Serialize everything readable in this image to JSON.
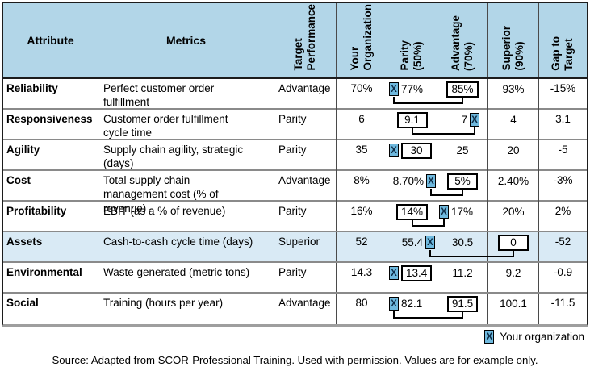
{
  "table": {
    "columns": {
      "attribute": "Attribute",
      "metrics": "Metrics",
      "rotated": [
        "Target\nPerformance",
        "Your\nOrganization",
        "Parity\n(50%)",
        "Advantage\n(70%)",
        "Superior\n(90%)",
        "Gap to\nTarget"
      ]
    },
    "rows": [
      {
        "attribute": "Reliability",
        "metric": "Perfect customer order fulfillment",
        "target": "Advantage",
        "your_org": "70%",
        "parity": {
          "value": "77%",
          "marker": "before",
          "align": "left"
        },
        "advantage": {
          "value": "85%",
          "boxed": true,
          "align": "center"
        },
        "superior": {
          "value": "93%",
          "align": "center"
        },
        "gap": "-15%",
        "connector": true,
        "highlight": false
      },
      {
        "attribute": "Responsiveness",
        "metric": "Customer order fulfillment cycle time",
        "target": "Parity",
        "your_org": "6",
        "parity": {
          "value": "9.1",
          "boxed": true,
          "align": "center"
        },
        "advantage": {
          "value": "7",
          "marker": "after",
          "align": "right",
          "pad": 10
        },
        "superior": {
          "value": "4",
          "align": "center"
        },
        "gap": "3.1",
        "connector": true,
        "highlight": false
      },
      {
        "attribute": "Agility",
        "metric": "Supply chain agility, strategic (days)",
        "target": "Parity",
        "your_org": "35",
        "parity": {
          "value": "30",
          "boxed": true,
          "marker": "before",
          "align": "left"
        },
        "advantage": {
          "value": "25",
          "align": "center"
        },
        "superior": {
          "value": "20",
          "align": "center"
        },
        "gap": "-5",
        "connector": false,
        "highlight": false
      },
      {
        "attribute": "Cost",
        "metric": "Total supply chain management cost (% of revenue)",
        "target": "Advantage",
        "your_org": "8%",
        "parity": {
          "value": "8.70%",
          "marker": "after",
          "align": "right",
          "pad": 1
        },
        "advantage": {
          "value": "5%",
          "boxed": true,
          "align": "center"
        },
        "superior": {
          "value": "2.40%",
          "align": "center"
        },
        "gap": "-3%",
        "connector": true,
        "highlight": false
      },
      {
        "attribute": "Profitability",
        "metric": "EBIT (as a % of revenue)",
        "target": "Parity",
        "your_org": "16%",
        "parity": {
          "value": "14%",
          "boxed": true,
          "align": "center"
        },
        "advantage": {
          "value": "17%",
          "marker": "before",
          "align": "left"
        },
        "superior": {
          "value": "20%",
          "align": "center"
        },
        "gap": "2%",
        "connector": true,
        "highlight": false
      },
      {
        "attribute": "Assets",
        "metric": "Cash-to-cash cycle time (days)",
        "target": "Superior",
        "your_org": "52",
        "parity": {
          "value": "55.4",
          "marker": "after",
          "align": "right",
          "pad": 2
        },
        "advantage": {
          "value": "30.5",
          "align": "center"
        },
        "superior": {
          "value": "0",
          "boxed": true,
          "align": "center"
        },
        "gap": "-52",
        "connector": true,
        "highlight": true
      },
      {
        "attribute": "Environmental",
        "metric": "Waste generated (metric tons)",
        "target": "Parity",
        "your_org": "14.3",
        "parity": {
          "value": "13.4",
          "boxed": true,
          "marker": "before",
          "align": "left"
        },
        "advantage": {
          "value": "11.2",
          "align": "center"
        },
        "superior": {
          "value": "9.2",
          "align": "center"
        },
        "gap": "-0.9",
        "connector": false,
        "highlight": false
      },
      {
        "attribute": "Social",
        "metric": "Training (hours per year)",
        "target": "Advantage",
        "your_org": "80",
        "parity": {
          "value": "82.1",
          "marker": "before",
          "align": "left"
        },
        "advantage": {
          "value": "91.5",
          "boxed": true,
          "align": "center"
        },
        "superior": {
          "value": "100.1",
          "align": "center"
        },
        "gap": "-11.5",
        "connector": true,
        "highlight": false
      }
    ]
  },
  "legend": {
    "marker": "X",
    "label": "Your organization"
  },
  "source": "Source: Adapted from SCOR-Professional Training. Used with permission. Values are for example only.",
  "colors": {
    "header_bg": "#B2D6E8",
    "highlight_row_bg": "#D9EAF5",
    "marker_fill": "#6FB9DE",
    "box_border": "#000000"
  }
}
